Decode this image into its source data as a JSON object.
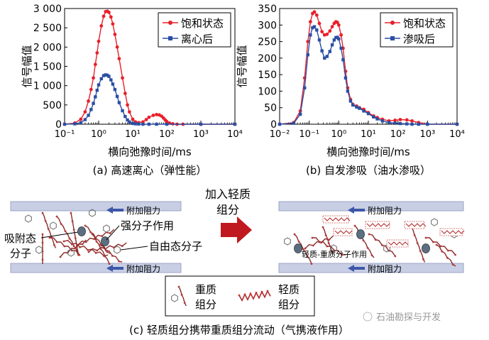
{
  "chart_data": [
    {
      "type": "line",
      "panel_label": "(a) 高速离心（弹性能）",
      "xlabel": "横向弛豫时间/ms",
      "ylabel": "信号幅值",
      "xscale": "log",
      "xlim": [
        0.1,
        10000
      ],
      "ylim": [
        0,
        3000
      ],
      "x_tick_labels": [
        "10⁻¹",
        "10⁰",
        "10¹",
        "10²",
        "10³",
        "10⁴"
      ],
      "y_tick_labels": [
        "0",
        "500",
        "1 000",
        "1 500",
        "2 000",
        "2 500",
        "3 000"
      ],
      "y_ticks": [
        0,
        500,
        1000,
        1500,
        2000,
        2500,
        3000
      ],
      "legend_position": "top-right",
      "grid": false,
      "series": [
        {
          "name": "饱和状态",
          "color": "#e8202a",
          "marker": "circle",
          "x": [
            0.1,
            0.2,
            0.3,
            0.4,
            0.5,
            0.6,
            0.7,
            0.8,
            0.9,
            1.0,
            1.2,
            1.4,
            1.6,
            1.8,
            2.0,
            2.3,
            2.6,
            3.0,
            3.5,
            4.0,
            5.0,
            6.0,
            7.0,
            8.0,
            10,
            12,
            15,
            20,
            25,
            30,
            40,
            50,
            60,
            70,
            80,
            90,
            100,
            120,
            150,
            200,
            300,
            1000,
            10000
          ],
          "y": [
            0,
            30,
            130,
            320,
            600,
            900,
            1200,
            1550,
            1850,
            2150,
            2550,
            2800,
            2920,
            2930,
            2900,
            2780,
            2600,
            2330,
            2000,
            1700,
            1200,
            800,
            500,
            320,
            130,
            60,
            40,
            60,
            120,
            180,
            230,
            250,
            240,
            210,
            160,
            110,
            70,
            30,
            10,
            0,
            0,
            0,
            0
          ]
        },
        {
          "name": "离心后",
          "color": "#2b4fa3",
          "marker": "square",
          "x": [
            0.1,
            0.2,
            0.3,
            0.4,
            0.5,
            0.6,
            0.7,
            0.8,
            0.9,
            1.0,
            1.2,
            1.4,
            1.6,
            1.8,
            2.0,
            2.3,
            2.6,
            3.0,
            3.5,
            4.0,
            5.0,
            6.0,
            7.0,
            8.0,
            10,
            12,
            15,
            20,
            30,
            50,
            100,
            1000,
            10000
          ],
          "y": [
            0,
            10,
            40,
            120,
            230,
            380,
            540,
            710,
            880,
            1020,
            1180,
            1260,
            1280,
            1270,
            1240,
            1150,
            1040,
            900,
            720,
            560,
            350,
            200,
            110,
            60,
            20,
            10,
            5,
            0,
            0,
            0,
            0,
            0,
            0
          ]
        }
      ]
    },
    {
      "type": "line",
      "panel_label": "(b) 自发渗吸（油水渗吸）",
      "xlabel": "横向弛豫时间/ms",
      "ylabel": "信号幅值",
      "xscale": "log",
      "xlim": [
        0.01,
        10000
      ],
      "ylim": [
        0,
        350
      ],
      "x_tick_labels": [
        "10⁻²",
        "10⁻¹",
        "10⁰",
        "10¹",
        "10²",
        "10³",
        "10⁴"
      ],
      "y_tick_labels": [
        "0",
        "50",
        "100",
        "150",
        "200",
        "250",
        "300",
        "350"
      ],
      "y_ticks": [
        0,
        50,
        100,
        150,
        200,
        250,
        300,
        350
      ],
      "legend_position": "top-right",
      "grid": false,
      "series": [
        {
          "name": "饱和状态",
          "color": "#e8202a",
          "marker": "circle",
          "x": [
            0.01,
            0.03,
            0.05,
            0.07,
            0.09,
            0.11,
            0.13,
            0.15,
            0.18,
            0.22,
            0.27,
            0.33,
            0.4,
            0.5,
            0.6,
            0.7,
            0.8,
            0.9,
            1.0,
            1.2,
            1.4,
            1.7,
            2.0,
            2.5,
            3.0,
            4.0,
            5.0,
            7.0,
            10,
            15,
            20,
            30,
            50,
            80,
            120,
            200,
            300,
            500,
            1000,
            10000
          ],
          "y": [
            0,
            5,
            40,
            140,
            250,
            310,
            335,
            340,
            330,
            305,
            280,
            270,
            272,
            282,
            295,
            305,
            310,
            308,
            300,
            270,
            230,
            160,
            110,
            75,
            60,
            55,
            50,
            45,
            35,
            25,
            20,
            15,
            10,
            12,
            14,
            13,
            10,
            5,
            0,
            0
          ]
        },
        {
          "name": "渗吸后",
          "color": "#2b4fa3",
          "marker": "square",
          "x": [
            0.01,
            0.03,
            0.05,
            0.07,
            0.09,
            0.11,
            0.13,
            0.15,
            0.18,
            0.22,
            0.27,
            0.33,
            0.4,
            0.5,
            0.6,
            0.7,
            0.8,
            0.9,
            1.0,
            1.2,
            1.4,
            1.7,
            2.0,
            2.5,
            3.0,
            4.0,
            5.0,
            7.0,
            10,
            15,
            20,
            30,
            50,
            80,
            120,
            200,
            300,
            500,
            1000,
            10000
          ],
          "y": [
            0,
            3,
            30,
            110,
            210,
            270,
            292,
            295,
            285,
            255,
            222,
            200,
            205,
            220,
            240,
            255,
            262,
            263,
            258,
            230,
            195,
            140,
            100,
            70,
            58,
            52,
            48,
            40,
            32,
            22,
            16,
            10,
            5,
            3,
            2,
            1,
            0,
            0,
            0,
            0
          ]
        }
      ]
    }
  ],
  "diagram": {
    "force_label": "附加阻力",
    "adsorbed_label": [
      "吸附态",
      "分子"
    ],
    "strong_force_label": "强分子作用",
    "free_label": "自由态分子",
    "arrow_label": [
      "加入轻质",
      "组分"
    ],
    "light_heavy_label": "轻质-重质分子作用",
    "legend_heavy": [
      "重质",
      "组分"
    ],
    "legend_light": [
      "轻质",
      "组分"
    ],
    "caption": "(c) 轻质组分携带重质组分流动（气携液作用）",
    "watermark": "石油勘探与开发"
  },
  "colors": {
    "red": "#e8202a",
    "blue": "#2b4fa3",
    "arrow_red": "#c0191f",
    "wall": "#c8cfe4",
    "force_arrow": "#3d57a8"
  }
}
